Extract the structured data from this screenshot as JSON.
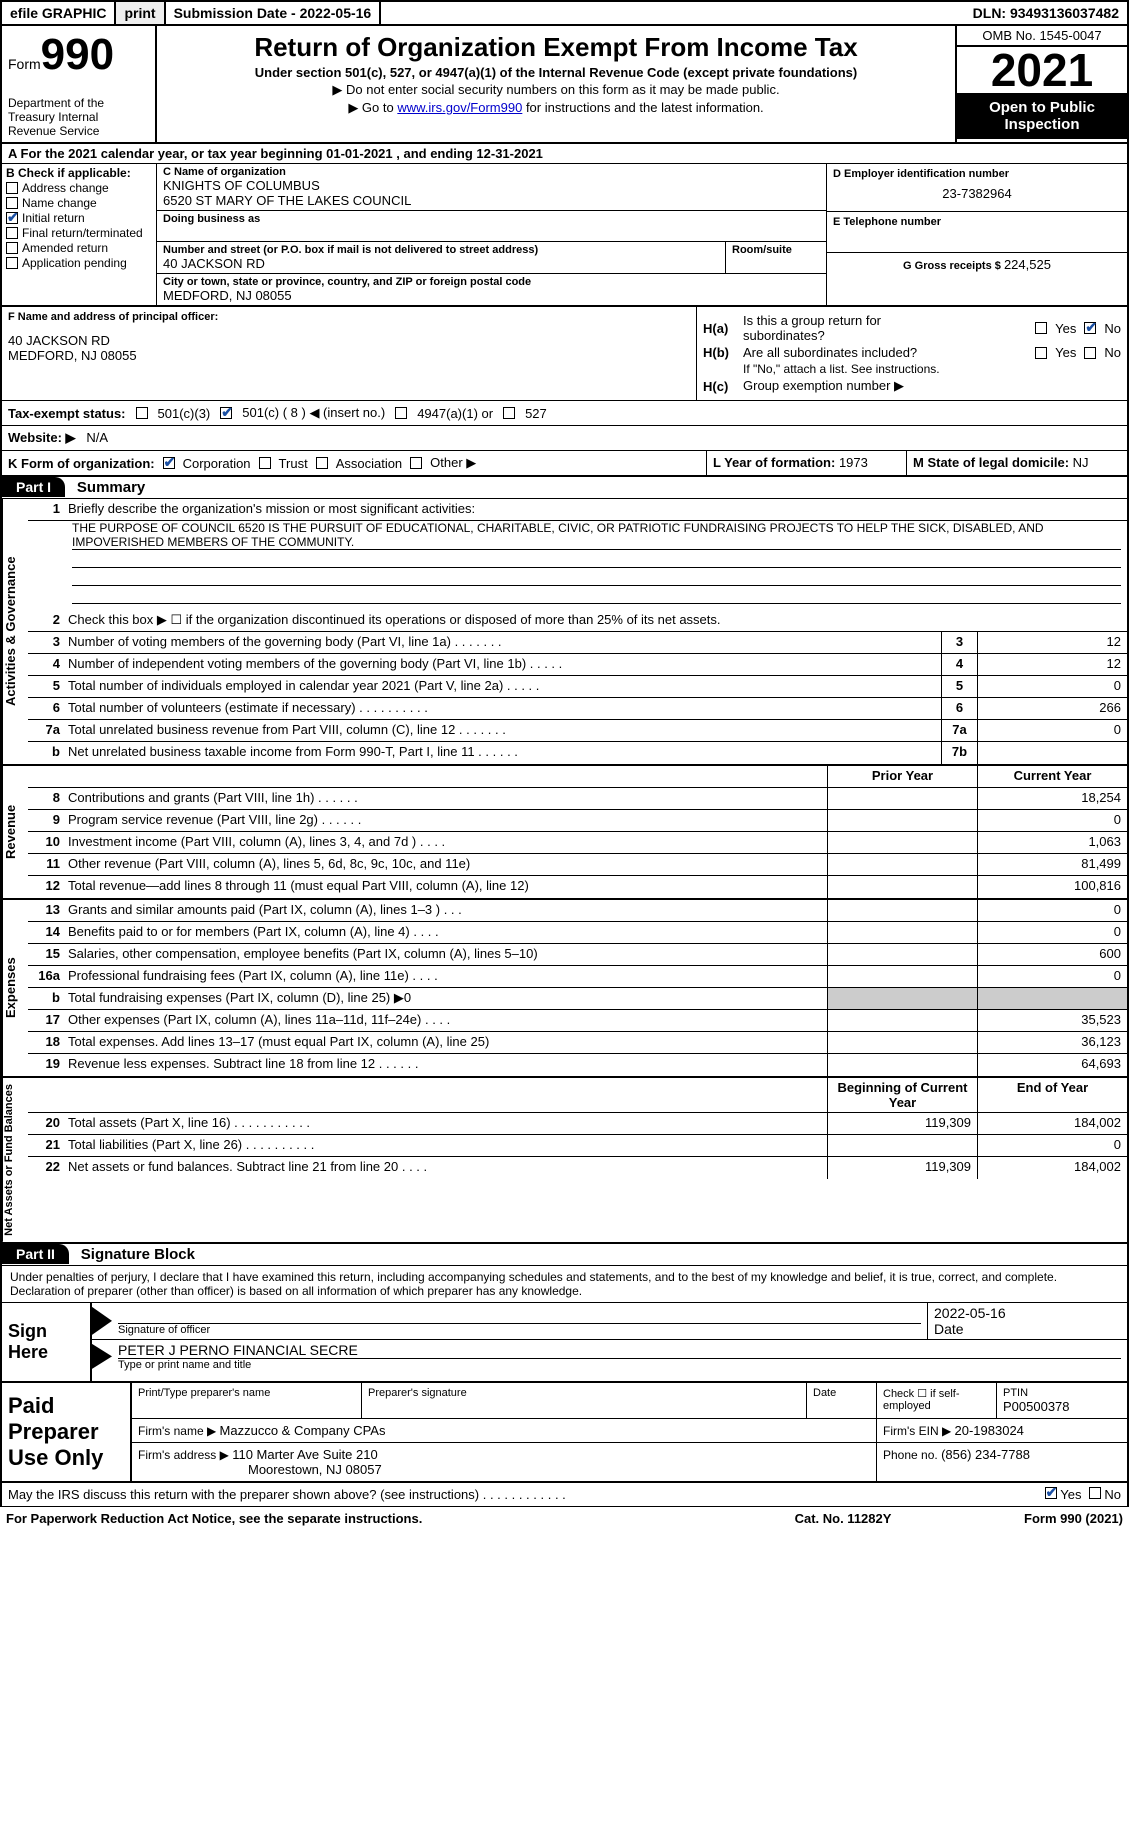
{
  "topbar": {
    "efile": "efile GRAPHIC",
    "print": "print",
    "sub_label": "Submission Date - ",
    "sub_date": "2022-05-16",
    "dln_label": "DLN: ",
    "dln": "93493136037482"
  },
  "header": {
    "form_word": "Form",
    "form_num": "990",
    "dept": "Department of the Treasury\nInternal Revenue Service",
    "title": "Return of Organization Exempt From Income Tax",
    "subtitle": "Under section 501(c), 527, or 4947(a)(1) of the Internal Revenue Code (except private foundations)",
    "note1": "▶ Do not enter social security numbers on this form as it may be made public.",
    "note2_pre": "▶ Go to ",
    "note2_link": "www.irs.gov/Form990",
    "note2_post": " for instructions and the latest information.",
    "omb": "OMB No. 1545-0047",
    "year": "2021",
    "open": "Open to Public Inspection"
  },
  "period": "A For the 2021 calendar year, or tax year beginning 01-01-2021    , and ending 12-31-2021",
  "colB": {
    "hdr": "B Check if applicable:",
    "items": [
      {
        "label": "Address change",
        "checked": false
      },
      {
        "label": "Name change",
        "checked": false
      },
      {
        "label": "Initial return",
        "checked": true
      },
      {
        "label": "Final return/terminated",
        "checked": false
      },
      {
        "label": "Amended return",
        "checked": false
      },
      {
        "label": "Application pending",
        "checked": false
      }
    ]
  },
  "colC": {
    "name_lbl": "C Name of organization",
    "name1": "KNIGHTS OF COLUMBUS",
    "name2": "6520 ST MARY OF THE LAKES COUNCIL",
    "dba_lbl": "Doing business as",
    "addr_lbl": "Number and street (or P.O. box if mail is not delivered to street address)",
    "room_lbl": "Room/suite",
    "addr": "40 JACKSON RD",
    "city_lbl": "City or town, state or province, country, and ZIP or foreign postal code",
    "city": "MEDFORD, NJ  08055"
  },
  "colDE": {
    "d_lbl": "D Employer identification number",
    "d_val": "23-7382964",
    "e_lbl": "E Telephone number",
    "g_lbl": "G Gross receipts $ ",
    "g_val": "224,525"
  },
  "blockF": {
    "lbl": "F Name and address of principal officer:",
    "l1": "40 JACKSON RD",
    "l2": "MEDFORD, NJ  08055"
  },
  "blockH": {
    "a_lbl": "Is this a group return for",
    "a_lbl2": "subordinates?",
    "b_lbl": "Are all subordinates included?",
    "b_note": "If \"No,\" attach a list. See instructions.",
    "c_lbl": "Group exemption number ▶",
    "ha": "H(a)",
    "hb": "H(b)",
    "hc": "H(c)",
    "yes": "Yes",
    "no": "No"
  },
  "blockI": {
    "lbl": "Tax-exempt status:",
    "o1": "501(c)(3)",
    "o2": "501(c) ( 8 ) ◀ (insert no.)",
    "o3": "4947(a)(1) or",
    "o4": "527"
  },
  "blockJ": {
    "lbl": "Website: ▶",
    "val": "N/A"
  },
  "blockK": {
    "lbl": "K Form of organization:",
    "o1": "Corporation",
    "o2": "Trust",
    "o3": "Association",
    "o4": "Other ▶",
    "l_lbl": "L Year of formation: ",
    "l_val": "1973",
    "m_lbl": "M State of legal domicile: ",
    "m_val": "NJ"
  },
  "part1": {
    "hdr": "Part I",
    "title": "Summary"
  },
  "summary": {
    "q1": "Briefly describe the organization's mission or most significant activities:",
    "mission": "THE PURPOSE OF COUNCIL 6520 IS THE PURSUIT OF EDUCATIONAL, CHARITABLE, CIVIC, OR PATRIOTIC FUNDRAISING PROJECTS TO HELP THE SICK, DISABLED, AND IMPOVERISHED MEMBERS OF THE COMMUNITY.",
    "q2": "Check this box ▶ ☐ if the organization discontinued its operations or disposed of more than 25% of its net assets.",
    "rows": [
      {
        "n": "3",
        "d": "Number of voting members of the governing body (Part VI, line 1a)  .  .  .  .  .  .  .",
        "box": "3",
        "v": "12"
      },
      {
        "n": "4",
        "d": "Number of independent voting members of the governing body (Part VI, line 1b)  .  .  .  .  .",
        "box": "4",
        "v": "12"
      },
      {
        "n": "5",
        "d": "Total number of individuals employed in calendar year 2021 (Part V, line 2a)  .  .  .  .  .",
        "box": "5",
        "v": "0"
      },
      {
        "n": "6",
        "d": "Total number of volunteers (estimate if necessary)  .  .  .  .  .  .  .  .  .  .",
        "box": "6",
        "v": "266"
      },
      {
        "n": "7a",
        "d": "Total unrelated business revenue from Part VIII, column (C), line 12  .  .  .  .  .  .  .",
        "box": "7a",
        "v": "0"
      },
      {
        "n": "b",
        "d": "Net unrelated business taxable income from Form 990-T, Part I, line 11  .  .  .  .  .  .",
        "box": "7b",
        "v": ""
      }
    ],
    "prior": "Prior Year",
    "current": "Current Year",
    "rev_rows": [
      {
        "n": "8",
        "d": "Contributions and grants (Part VIII, line 1h)  .  .  .  .  .  .",
        "p": "",
        "c": "18,254"
      },
      {
        "n": "9",
        "d": "Program service revenue (Part VIII, line 2g)  .  .  .  .  .  .",
        "p": "",
        "c": "0"
      },
      {
        "n": "10",
        "d": "Investment income (Part VIII, column (A), lines 3, 4, and 7d )  .  .  .  .",
        "p": "",
        "c": "1,063"
      },
      {
        "n": "11",
        "d": "Other revenue (Part VIII, column (A), lines 5, 6d, 8c, 9c, 10c, and 11e)",
        "p": "",
        "c": "81,499"
      },
      {
        "n": "12",
        "d": "Total revenue—add lines 8 through 11 (must equal Part VIII, column (A), line 12)",
        "p": "",
        "c": "100,816"
      }
    ],
    "exp_rows": [
      {
        "n": "13",
        "d": "Grants and similar amounts paid (Part IX, column (A), lines 1–3 )  .  .  .",
        "p": "",
        "c": "0"
      },
      {
        "n": "14",
        "d": "Benefits paid to or for members (Part IX, column (A), line 4)  .  .  .  .",
        "p": "",
        "c": "0"
      },
      {
        "n": "15",
        "d": "Salaries, other compensation, employee benefits (Part IX, column (A), lines 5–10)",
        "p": "",
        "c": "600"
      },
      {
        "n": "16a",
        "d": "Professional fundraising fees (Part IX, column (A), line 11e)  .  .  .  .",
        "p": "",
        "c": "0"
      },
      {
        "n": "b",
        "d": "Total fundraising expenses (Part IX, column (D), line 25) ▶0",
        "p": "shade",
        "c": "shade"
      },
      {
        "n": "17",
        "d": "Other expenses (Part IX, column (A), lines 11a–11d, 11f–24e)  .  .  .  .",
        "p": "",
        "c": "35,523"
      },
      {
        "n": "18",
        "d": "Total expenses. Add lines 13–17 (must equal Part IX, column (A), line 25)",
        "p": "",
        "c": "36,123"
      },
      {
        "n": "19",
        "d": "Revenue less expenses. Subtract line 18 from line 12  .  .  .  .  .  .",
        "p": "",
        "c": "64,693"
      }
    ],
    "bbal": "Beginning of Current Year",
    "ebal": "End of Year",
    "na_rows": [
      {
        "n": "20",
        "d": "Total assets (Part X, line 16)  .  .  .  .  .  .  .  .  .  .  .",
        "p": "119,309",
        "c": "184,002"
      },
      {
        "n": "21",
        "d": "Total liabilities (Part X, line 26)  .  .  .  .  .  .  .  .  .  .",
        "p": "",
        "c": "0"
      },
      {
        "n": "22",
        "d": "Net assets or fund balances. Subtract line 21 from line 20  .  .  .  .",
        "p": "119,309",
        "c": "184,002"
      }
    ],
    "side_act": "Activities & Governance",
    "side_rev": "Revenue",
    "side_exp": "Expenses",
    "side_na": "Net Assets or Fund Balances"
  },
  "part2": {
    "hdr": "Part II",
    "title": "Signature Block"
  },
  "sig": {
    "intro": "Under penalties of perjury, I declare that I have examined this return, including accompanying schedules and statements, and to the best of my knowledge and belief, it is true, correct, and complete. Declaration of preparer (other than officer) is based on all information of which preparer has any knowledge.",
    "sign_here": "Sign Here",
    "sig_lbl": "Signature of officer",
    "date_lbl": "Date",
    "date_val": "2022-05-16",
    "name_val": "PETER J PERNO  FINANCIAL SECRE",
    "name_lbl": "Type or print name and title"
  },
  "prep": {
    "left": "Paid Preparer Use Only",
    "r1c1_lbl": "Print/Type preparer's name",
    "r1c2_lbl": "Preparer's signature",
    "r1c3_lbl": "Date",
    "r1c4_lbl": "Check ☐ if self-employed",
    "r1c5_lbl": "PTIN",
    "r1c5_val": "P00500378",
    "r2_lbl": "Firm's name    ▶ ",
    "r2_val": "Mazzucco & Company CPAs",
    "r2b_lbl": "Firm's EIN ▶ ",
    "r2b_val": "20-1983024",
    "r3_lbl": "Firm's address ▶ ",
    "r3_val1": "110 Marter Ave Suite 210",
    "r3_val2": "Moorestown, NJ  08057",
    "r3b_lbl": "Phone no. ",
    "r3b_val": "(856) 234-7788"
  },
  "footer": {
    "discuss": "May the IRS discuss this return with the preparer shown above? (see instructions)  .  .  .  .  .  .  .  .  .  .  .  .",
    "yes": "Yes",
    "no": "No",
    "pra": "For Paperwork Reduction Act Notice, see the separate instructions.",
    "cat": "Cat. No. 11282Y",
    "form": "Form 990 (2021)"
  }
}
